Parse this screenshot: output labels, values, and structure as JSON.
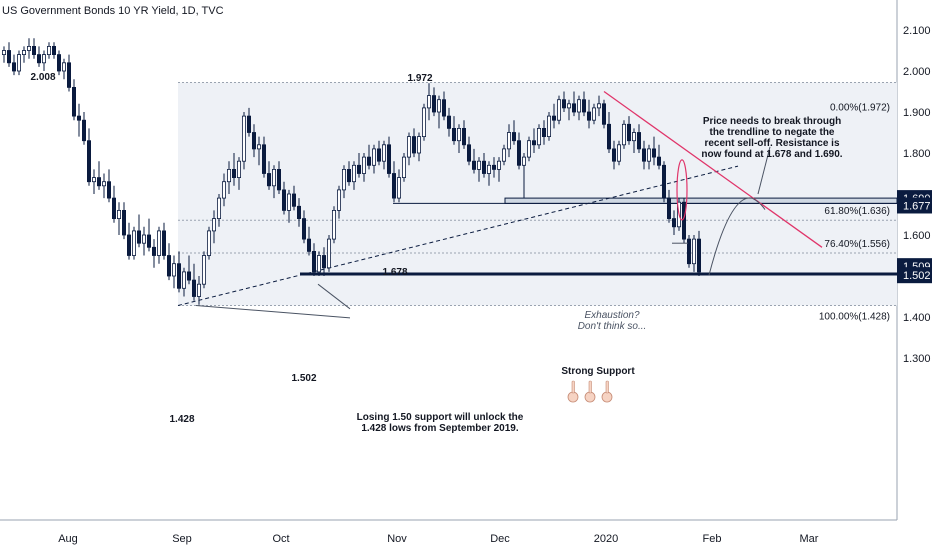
{
  "chart_data": {
    "type": "candlestick",
    "title": "US Government Bonds 10 YR Yield, 1D, TVC",
    "ylim": [
      1.2,
      2.11
    ],
    "y_ticks": [
      "2.100",
      "2.000",
      "1.900",
      "1.800",
      "1.700",
      "1.600",
      "1.500",
      "1.400",
      "1.300"
    ],
    "x_ticks": [
      "Aug",
      "Sep",
      "Oct",
      "Nov",
      "Dec",
      "2020",
      "Feb",
      "Mar"
    ],
    "price_badges": [
      {
        "label": "1.690",
        "value": 1.69
      },
      {
        "label": "1.677",
        "value": 1.677
      },
      {
        "label": "1.509",
        "value": 1.509
      },
      {
        "label": "1.502",
        "value": 1.502
      }
    ],
    "fib_levels": [
      {
        "label": "0.00%(1.972)",
        "value": 1.972
      },
      {
        "label": "61.80%(1.636)",
        "value": 1.636
      },
      {
        "label": "76.40%(1.556)",
        "value": 1.556
      },
      {
        "label": "100.00%(1.428)",
        "value": 1.428
      }
    ],
    "point_labels": [
      {
        "text": "2.008",
        "value": 2.008
      },
      {
        "text": "1.972",
        "value": 1.972
      },
      {
        "text": "1.678",
        "value": 1.678
      },
      {
        "text": "1.502",
        "value": 1.502
      },
      {
        "text": "1.428",
        "value": 1.428
      }
    ],
    "annotations": {
      "resistance": [
        "Price needs to break through",
        "the trendline to negate the",
        "recent sell-off. Resistance is",
        "now found at 1.678 and 1.690."
      ],
      "exhaustion": [
        "Exhaustion?",
        "Don't think so..."
      ],
      "support": "Strong Support",
      "losing": [
        "Losing 1.50 support will unlock the",
        "1.428 lows from September 2019."
      ]
    },
    "candles": [
      [
        2.04,
        2.06,
        2.02,
        2.05
      ],
      [
        2.05,
        2.07,
        2.01,
        2.02
      ],
      [
        2.02,
        2.04,
        1.99,
        2.0
      ],
      [
        2.0,
        2.05,
        1.99,
        2.04
      ],
      [
        2.04,
        2.06,
        2.02,
        2.05
      ],
      [
        2.05,
        2.08,
        2.03,
        2.06
      ],
      [
        2.06,
        2.08,
        2.03,
        2.04
      ],
      [
        2.04,
        2.06,
        2.01,
        2.02
      ],
      [
        2.02,
        2.05,
        2.0,
        2.04
      ],
      [
        2.04,
        2.07,
        2.03,
        2.06
      ],
      [
        2.06,
        2.07,
        2.03,
        2.04
      ],
      [
        2.04,
        2.05,
        1.99,
        2.0
      ],
      [
        2.0,
        2.03,
        1.98,
        2.02
      ],
      [
        2.02,
        2.04,
        1.95,
        1.96
      ],
      [
        1.96,
        1.98,
        1.88,
        1.89
      ],
      [
        1.89,
        1.92,
        1.84,
        1.88
      ],
      [
        1.88,
        1.9,
        1.82,
        1.83
      ],
      [
        1.83,
        1.86,
        1.72,
        1.73
      ],
      [
        1.73,
        1.76,
        1.7,
        1.74
      ],
      [
        1.74,
        1.78,
        1.71,
        1.72
      ],
      [
        1.72,
        1.75,
        1.69,
        1.73
      ],
      [
        1.73,
        1.76,
        1.68,
        1.69
      ],
      [
        1.69,
        1.72,
        1.63,
        1.64
      ],
      [
        1.64,
        1.68,
        1.6,
        1.66
      ],
      [
        1.66,
        1.68,
        1.59,
        1.6
      ],
      [
        1.6,
        1.63,
        1.54,
        1.55
      ],
      [
        1.55,
        1.62,
        1.54,
        1.61
      ],
      [
        1.61,
        1.65,
        1.57,
        1.58
      ],
      [
        1.58,
        1.62,
        1.55,
        1.6
      ],
      [
        1.6,
        1.64,
        1.56,
        1.57
      ],
      [
        1.57,
        1.59,
        1.52,
        1.55
      ],
      [
        1.55,
        1.62,
        1.53,
        1.61
      ],
      [
        1.61,
        1.63,
        1.54,
        1.55
      ],
      [
        1.55,
        1.58,
        1.49,
        1.5
      ],
      [
        1.5,
        1.55,
        1.47,
        1.53
      ],
      [
        1.53,
        1.56,
        1.46,
        1.47
      ],
      [
        1.47,
        1.52,
        1.45,
        1.51
      ],
      [
        1.51,
        1.55,
        1.48,
        1.49
      ],
      [
        1.49,
        1.53,
        1.44,
        1.45
      ],
      [
        1.45,
        1.5,
        1.43,
        1.48
      ],
      [
        1.48,
        1.56,
        1.47,
        1.55
      ],
      [
        1.55,
        1.62,
        1.54,
        1.61
      ],
      [
        1.61,
        1.66,
        1.58,
        1.64
      ],
      [
        1.64,
        1.7,
        1.62,
        1.69
      ],
      [
        1.69,
        1.75,
        1.67,
        1.73
      ],
      [
        1.73,
        1.78,
        1.7,
        1.76
      ],
      [
        1.76,
        1.8,
        1.72,
        1.74
      ],
      [
        1.74,
        1.79,
        1.71,
        1.78
      ],
      [
        1.78,
        1.9,
        1.76,
        1.89
      ],
      [
        1.89,
        1.91,
        1.84,
        1.85
      ],
      [
        1.85,
        1.87,
        1.79,
        1.81
      ],
      [
        1.81,
        1.84,
        1.77,
        1.82
      ],
      [
        1.82,
        1.84,
        1.74,
        1.75
      ],
      [
        1.75,
        1.78,
        1.71,
        1.72
      ],
      [
        1.72,
        1.77,
        1.69,
        1.76
      ],
      [
        1.76,
        1.78,
        1.7,
        1.71
      ],
      [
        1.71,
        1.73,
        1.65,
        1.66
      ],
      [
        1.66,
        1.71,
        1.63,
        1.7
      ],
      [
        1.7,
        1.72,
        1.66,
        1.67
      ],
      [
        1.67,
        1.69,
        1.62,
        1.64
      ],
      [
        1.64,
        1.66,
        1.58,
        1.59
      ],
      [
        1.59,
        1.62,
        1.55,
        1.56
      ],
      [
        1.56,
        1.58,
        1.5,
        1.51
      ],
      [
        1.51,
        1.56,
        1.5,
        1.55
      ],
      [
        1.55,
        1.57,
        1.5,
        1.52
      ],
      [
        1.52,
        1.6,
        1.51,
        1.59
      ],
      [
        1.59,
        1.67,
        1.58,
        1.66
      ],
      [
        1.66,
        1.72,
        1.64,
        1.71
      ],
      [
        1.71,
        1.77,
        1.69,
        1.76
      ],
      [
        1.76,
        1.78,
        1.72,
        1.73
      ],
      [
        1.73,
        1.78,
        1.71,
        1.77
      ],
      [
        1.77,
        1.8,
        1.74,
        1.75
      ],
      [
        1.75,
        1.8,
        1.73,
        1.79
      ],
      [
        1.79,
        1.82,
        1.76,
        1.77
      ],
      [
        1.77,
        1.82,
        1.75,
        1.81
      ],
      [
        1.81,
        1.83,
        1.77,
        1.78
      ],
      [
        1.78,
        1.83,
        1.76,
        1.82
      ],
      [
        1.82,
        1.84,
        1.74,
        1.75
      ],
      [
        1.75,
        1.78,
        1.68,
        1.69
      ],
      [
        1.69,
        1.76,
        1.68,
        1.74
      ],
      [
        1.74,
        1.8,
        1.73,
        1.79
      ],
      [
        1.79,
        1.85,
        1.77,
        1.84
      ],
      [
        1.84,
        1.86,
        1.79,
        1.8
      ],
      [
        1.8,
        1.85,
        1.78,
        1.84
      ],
      [
        1.84,
        1.92,
        1.83,
        1.91
      ],
      [
        1.91,
        1.97,
        1.88,
        1.94
      ],
      [
        1.94,
        1.96,
        1.89,
        1.9
      ],
      [
        1.9,
        1.94,
        1.86,
        1.93
      ],
      [
        1.93,
        1.95,
        1.88,
        1.89
      ],
      [
        1.89,
        1.91,
        1.84,
        1.86
      ],
      [
        1.86,
        1.89,
        1.82,
        1.83
      ],
      [
        1.83,
        1.87,
        1.8,
        1.86
      ],
      [
        1.86,
        1.88,
        1.81,
        1.82
      ],
      [
        1.82,
        1.84,
        1.77,
        1.78
      ],
      [
        1.78,
        1.81,
        1.75,
        1.76
      ],
      [
        1.76,
        1.79,
        1.73,
        1.78
      ],
      [
        1.78,
        1.8,
        1.74,
        1.75
      ],
      [
        1.75,
        1.78,
        1.72,
        1.77
      ],
      [
        1.77,
        1.79,
        1.74,
        1.76
      ],
      [
        1.76,
        1.79,
        1.73,
        1.78
      ],
      [
        1.78,
        1.82,
        1.77,
        1.81
      ],
      [
        1.81,
        1.87,
        1.79,
        1.85
      ],
      [
        1.85,
        1.88,
        1.82,
        1.83
      ],
      [
        1.83,
        1.85,
        1.76,
        1.77
      ],
      [
        1.77,
        1.8,
        1.69,
        1.79
      ],
      [
        1.79,
        1.84,
        1.78,
        1.83
      ],
      [
        1.83,
        1.86,
        1.8,
        1.82
      ],
      [
        1.82,
        1.87,
        1.81,
        1.86
      ],
      [
        1.86,
        1.88,
        1.82,
        1.84
      ],
      [
        1.84,
        1.9,
        1.83,
        1.89
      ],
      [
        1.89,
        1.92,
        1.86,
        1.88
      ],
      [
        1.88,
        1.94,
        1.87,
        1.93
      ],
      [
        1.93,
        1.95,
        1.9,
        1.91
      ],
      [
        1.91,
        1.93,
        1.88,
        1.92
      ],
      [
        1.92,
        1.95,
        1.89,
        1.9
      ],
      [
        1.9,
        1.94,
        1.88,
        1.93
      ],
      [
        1.93,
        1.95,
        1.89,
        1.9
      ],
      [
        1.9,
        1.93,
        1.86,
        1.88
      ],
      [
        1.88,
        1.92,
        1.87,
        1.91
      ],
      [
        1.91,
        1.94,
        1.89,
        1.92
      ],
      [
        1.92,
        1.93,
        1.86,
        1.87
      ],
      [
        1.87,
        1.9,
        1.8,
        1.81
      ],
      [
        1.81,
        1.83,
        1.76,
        1.78
      ],
      [
        1.78,
        1.83,
        1.77,
        1.82
      ],
      [
        1.82,
        1.88,
        1.81,
        1.87
      ],
      [
        1.87,
        1.89,
        1.82,
        1.83
      ],
      [
        1.83,
        1.86,
        1.8,
        1.85
      ],
      [
        1.85,
        1.87,
        1.8,
        1.81
      ],
      [
        1.81,
        1.83,
        1.76,
        1.78
      ],
      [
        1.78,
        1.82,
        1.76,
        1.81
      ],
      [
        1.81,
        1.84,
        1.77,
        1.79
      ],
      [
        1.79,
        1.82,
        1.76,
        1.77
      ],
      [
        1.77,
        1.78,
        1.68,
        1.69
      ],
      [
        1.69,
        1.71,
        1.63,
        1.64
      ],
      [
        1.64,
        1.66,
        1.6,
        1.62
      ],
      [
        1.62,
        1.69,
        1.61,
        1.68
      ],
      [
        1.68,
        1.69,
        1.58,
        1.59
      ],
      [
        1.59,
        1.6,
        1.52,
        1.53
      ],
      [
        1.53,
        1.6,
        1.51,
        1.59
      ],
      [
        1.59,
        1.61,
        1.5,
        1.51
      ]
    ]
  },
  "colors": {
    "candle": "#0a1b3f",
    "trendline_red": "#e0356a",
    "support": "#0a1b3f",
    "zone": "#cfd8e3"
  }
}
